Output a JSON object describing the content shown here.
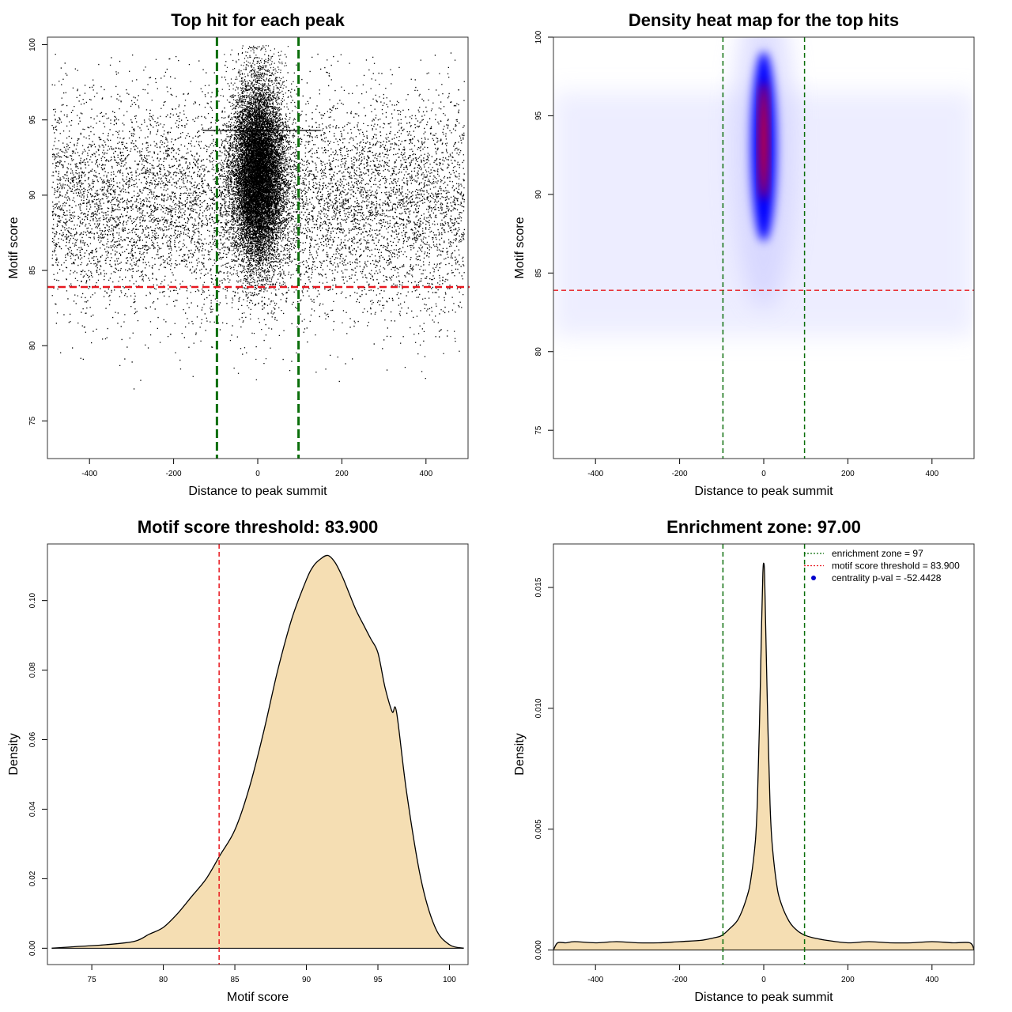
{
  "chart_data": [
    {
      "type": "scatter",
      "title": "Top hit for each peak",
      "xlabel": "Distance to peak summit",
      "ylabel": "Motif score",
      "xlim": [
        -500,
        500
      ],
      "ylim": [
        72.5,
        100.5
      ],
      "xticks": [
        -400,
        -200,
        0,
        200,
        400
      ],
      "yticks": [
        75,
        80,
        85,
        90,
        95,
        100
      ],
      "threshold_y": 83.9,
      "enrichment_x": [
        -97,
        97
      ],
      "point_cloud": {
        "background": {
          "x_range": [
            -490,
            490
          ],
          "y_mean": 89.5,
          "y_sd": 3.6
        },
        "central": {
          "x_mean": 0,
          "x_sd": 30,
          "y_mean": 91.5,
          "y_sd": 3.0
        }
      },
      "horizontal_mark": {
        "y": 94.3,
        "x_range": [
          -130,
          150
        ]
      },
      "grid": false,
      "colors": {
        "points": "#000000",
        "threshold": "#e8171f",
        "enrichment": "#0a6e0a"
      }
    },
    {
      "type": "heatmap",
      "title": "Density heat map for the top hits",
      "xlabel": "Distance to peak summit",
      "ylabel": "Motif score",
      "xlim": [
        -500,
        500
      ],
      "ylim": [
        73.2,
        100
      ],
      "xticks": [
        -400,
        -200,
        0,
        200,
        400
      ],
      "yticks": [
        75,
        80,
        85,
        90,
        95,
        100
      ],
      "threshold_y": 83.9,
      "enrichment_x": [
        -97,
        97
      ],
      "hotspot": {
        "x": 0,
        "y": 92.8
      },
      "grid": false,
      "colors": {
        "low": "#ffffff",
        "mid": "#0000ff",
        "high": "#ff0000",
        "threshold": "#e8171f",
        "enrichment": "#0a6e0a"
      }
    },
    {
      "type": "area",
      "title": "Motif score threshold: 83.900",
      "xlabel": "Motif score",
      "ylabel": "Density",
      "xlim": [
        71.9,
        101.3
      ],
      "ylim": [
        -0.0047,
        0.1163
      ],
      "xticks": [
        75,
        80,
        85,
        90,
        95,
        100
      ],
      "yticks": [
        0.0,
        0.02,
        0.04,
        0.06,
        0.08,
        0.1
      ],
      "ytick_labels": [
        "0.00",
        "0.02",
        "0.04",
        "0.06",
        "0.08",
        "0.10"
      ],
      "threshold_x": 83.9,
      "x": [
        72.2,
        74,
        76,
        78,
        79,
        80,
        81,
        82,
        83,
        84,
        85,
        86,
        87,
        88,
        89,
        90,
        90.5,
        91,
        91.5,
        92,
        92.5,
        93,
        93.5,
        94,
        94.5,
        95,
        95.5,
        96,
        96.3,
        97,
        98,
        99,
        100,
        101
      ],
      "y": [
        0.0,
        0.0005,
        0.001,
        0.002,
        0.004,
        0.006,
        0.01,
        0.015,
        0.02,
        0.027,
        0.034,
        0.046,
        0.062,
        0.08,
        0.095,
        0.106,
        0.11,
        0.112,
        0.113,
        0.111,
        0.107,
        0.102,
        0.097,
        0.093,
        0.089,
        0.085,
        0.075,
        0.068,
        0.068,
        0.045,
        0.02,
        0.006,
        0.001,
        0.0
      ],
      "grid": false,
      "colors": {
        "fill": "#f5deb3",
        "line": "#000000",
        "threshold": "#e8171f"
      }
    },
    {
      "type": "area",
      "title": "Enrichment zone: 97.00",
      "xlabel": "Distance to peak summit",
      "ylabel": "Density",
      "xlim": [
        -500,
        500
      ],
      "ylim": [
        -0.0006,
        0.0168
      ],
      "xticks": [
        -400,
        -200,
        0,
        200,
        400
      ],
      "yticks": [
        0.0,
        0.005,
        0.01,
        0.015
      ],
      "ytick_labels": [
        "0.000",
        "0.005",
        "0.010",
        "0.015"
      ],
      "enrichment_x": [
        -97,
        97
      ],
      "x": [
        -500,
        -490,
        -470,
        -450,
        -400,
        -350,
        -300,
        -250,
        -200,
        -150,
        -120,
        -100,
        -80,
        -60,
        -40,
        -30,
        -20,
        -15,
        -10,
        -5,
        -2,
        0,
        2,
        5,
        10,
        15,
        20,
        30,
        40,
        60,
        80,
        100,
        120,
        150,
        200,
        250,
        300,
        350,
        400,
        450,
        490,
        500
      ],
      "y": [
        0.0,
        0.0003,
        0.0003,
        0.00035,
        0.0003,
        0.00035,
        0.0003,
        0.0003,
        0.00035,
        0.0004,
        0.0005,
        0.0006,
        0.0009,
        0.0013,
        0.0022,
        0.003,
        0.0045,
        0.0062,
        0.0095,
        0.0135,
        0.0156,
        0.016,
        0.0155,
        0.013,
        0.0092,
        0.006,
        0.0044,
        0.0028,
        0.002,
        0.0012,
        0.0008,
        0.0006,
        0.0005,
        0.0004,
        0.0003,
        0.00035,
        0.0003,
        0.0003,
        0.00035,
        0.0003,
        0.0003,
        0.0
      ],
      "legend": {
        "position": "top-right",
        "entries": [
          {
            "label": "enrichment zone = 97",
            "style": "dotted-line",
            "color": "#0a6e0a"
          },
          {
            "label": "motif score threshold = 83.900",
            "style": "dotted-line",
            "color": "#e8171f"
          },
          {
            "label": "centrality p-val = -52.4428",
            "style": "point",
            "color": "#0000cc"
          }
        ]
      },
      "grid": false,
      "colors": {
        "fill": "#f5deb3",
        "line": "#000000",
        "enrichment": "#0a6e0a"
      }
    }
  ]
}
